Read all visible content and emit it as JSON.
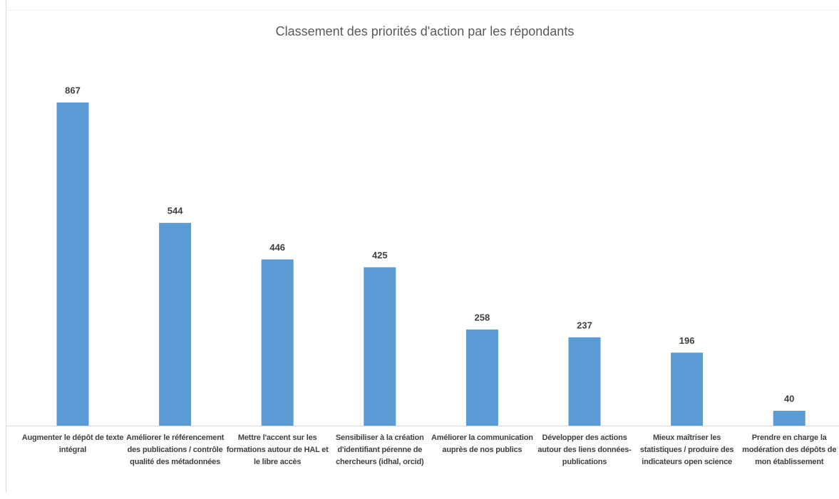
{
  "chart_data": {
    "type": "bar",
    "title": "Classement des priorités d'action par les répondants",
    "categories": [
      "Augmenter le dépôt de texte intégral",
      "Améliorer le référencement des publications / contrôle qualité des métadonnées",
      "Mettre l'accent sur les formations autour de HAL et le libre accès",
      "Sensibiliser à la création d'identifiant pérenne de chercheurs (idhal, orcid)",
      "Améliorer la communication auprès de nos publics",
      "Développer des actions autour des liens données-publications",
      "Mieux maîtriser les statistiques / produire des indicateurs open science",
      "Prendre en charge la modération des dépôts de mon établissement"
    ],
    "values": [
      867,
      544,
      446,
      425,
      258,
      237,
      196,
      40
    ],
    "color": "#5b9bd5",
    "grid": false
  }
}
